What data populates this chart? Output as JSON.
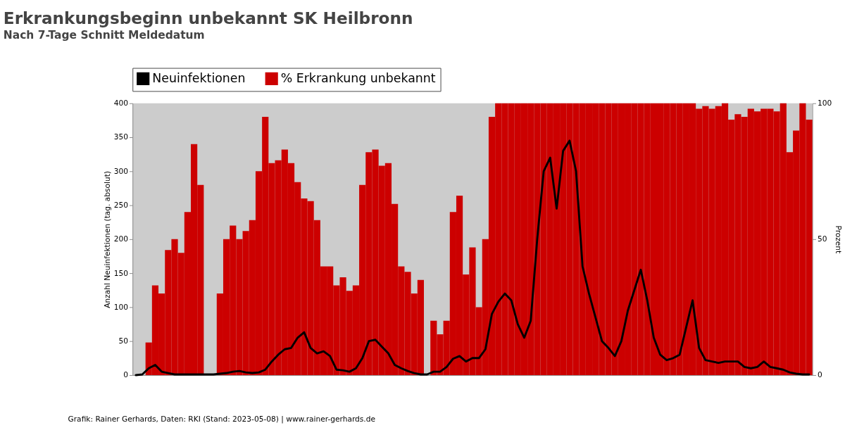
{
  "chart_data": {
    "type": "bar",
    "title": "Erkrankungsbeginn unbekannt SK Heilbronn",
    "subtitle": "Nach 7-Tage Schnitt Meldedatum",
    "ylabel": "Anzahl Neuinfektionen (tag. absolut)",
    "y2label": "Prozent",
    "categories": [
      null,
      null,
      null,
      null,
      null,
      null,
      null,
      null,
      null,
      null,
      null,
      null,
      null,
      null,
      null,
      null,
      null,
      null,
      null,
      null,
      null,
      null,
      null,
      null,
      null,
      null,
      null,
      null,
      null,
      null,
      null,
      null,
      null,
      null,
      null,
      null,
      null,
      null,
      null,
      null,
      null,
      null,
      null,
      null,
      null,
      null,
      null,
      null,
      null,
      null,
      null,
      null,
      null,
      null,
      null,
      null,
      null,
      null,
      null,
      null,
      null,
      null,
      null,
      null,
      null,
      null,
      null,
      null,
      null,
      null,
      null,
      null,
      null,
      null,
      null,
      null,
      null,
      null,
      null,
      null,
      null,
      null,
      null,
      null,
      null,
      null,
      null,
      null,
      null,
      null,
      null,
      null,
      null,
      null,
      null,
      null,
      null,
      null,
      null,
      null,
      null,
      null,
      null,
      null,
      null
    ],
    "series": [
      {
        "name": "Neuinfektionen",
        "type": "line",
        "axis": "y",
        "color": "#000000",
        "values": [
          0,
          1,
          10,
          15,
          5,
          3,
          1,
          1,
          1,
          1,
          1,
          1,
          1,
          2,
          3,
          5,
          6,
          4,
          3,
          4,
          8,
          20,
          30,
          38,
          40,
          55,
          63,
          40,
          32,
          35,
          28,
          8,
          7,
          5,
          10,
          25,
          50,
          52,
          42,
          32,
          15,
          10,
          6,
          3,
          1,
          1,
          5,
          5,
          12,
          24,
          28,
          20,
          25,
          25,
          38,
          90,
          108,
          120,
          110,
          75,
          55,
          80,
          200,
          300,
          320,
          245,
          330,
          345,
          300,
          160,
          120,
          85,
          50,
          40,
          28,
          50,
          95,
          125,
          155,
          110,
          55,
          30,
          22,
          25,
          30,
          70,
          110,
          40,
          22,
          20,
          18,
          20,
          20,
          20,
          12,
          10,
          12,
          20,
          12,
          10,
          8,
          4,
          2,
          1,
          1
        ]
      },
      {
        "name": "% Erkrankung unbekannt",
        "type": "bar",
        "axis": "y2",
        "color": "#cc0000",
        "values": [
          0,
          0,
          12,
          33,
          30,
          46,
          50,
          45,
          60,
          85,
          70,
          0,
          0,
          30,
          50,
          55,
          50,
          53,
          57,
          75,
          95,
          78,
          79,
          83,
          78,
          71,
          65,
          64,
          57,
          40,
          40,
          33,
          36,
          31,
          33,
          70,
          82,
          83,
          77,
          78,
          63,
          40,
          38,
          30,
          35,
          0,
          20,
          15,
          20,
          60,
          66,
          37,
          47,
          25,
          50,
          95,
          100,
          100,
          100,
          100,
          100,
          100,
          100,
          100,
          100,
          100,
          100,
          100,
          100,
          100,
          100,
          100,
          100,
          100,
          100,
          100,
          100,
          100,
          100,
          100,
          100,
          100,
          100,
          100,
          100,
          100,
          100,
          98,
          99,
          98,
          99,
          100,
          94,
          96,
          95,
          98,
          97,
          98,
          98,
          97,
          100,
          82,
          90,
          100,
          94
        ]
      }
    ],
    "ylim": [
      0,
      400
    ],
    "yticks": [
      0,
      50,
      100,
      150,
      200,
      250,
      300,
      350,
      400
    ],
    "y2lim": [
      0,
      100
    ],
    "y2ticks": [
      0,
      50,
      100
    ],
    "grid": false,
    "legend": "top",
    "tick_labels": "y",
    "annotations": [
      "Grafik: Rainer Gerhards, Daten: RKI (Stand: 2023-05-08) | www.rainer-gerhards.de"
    ]
  }
}
